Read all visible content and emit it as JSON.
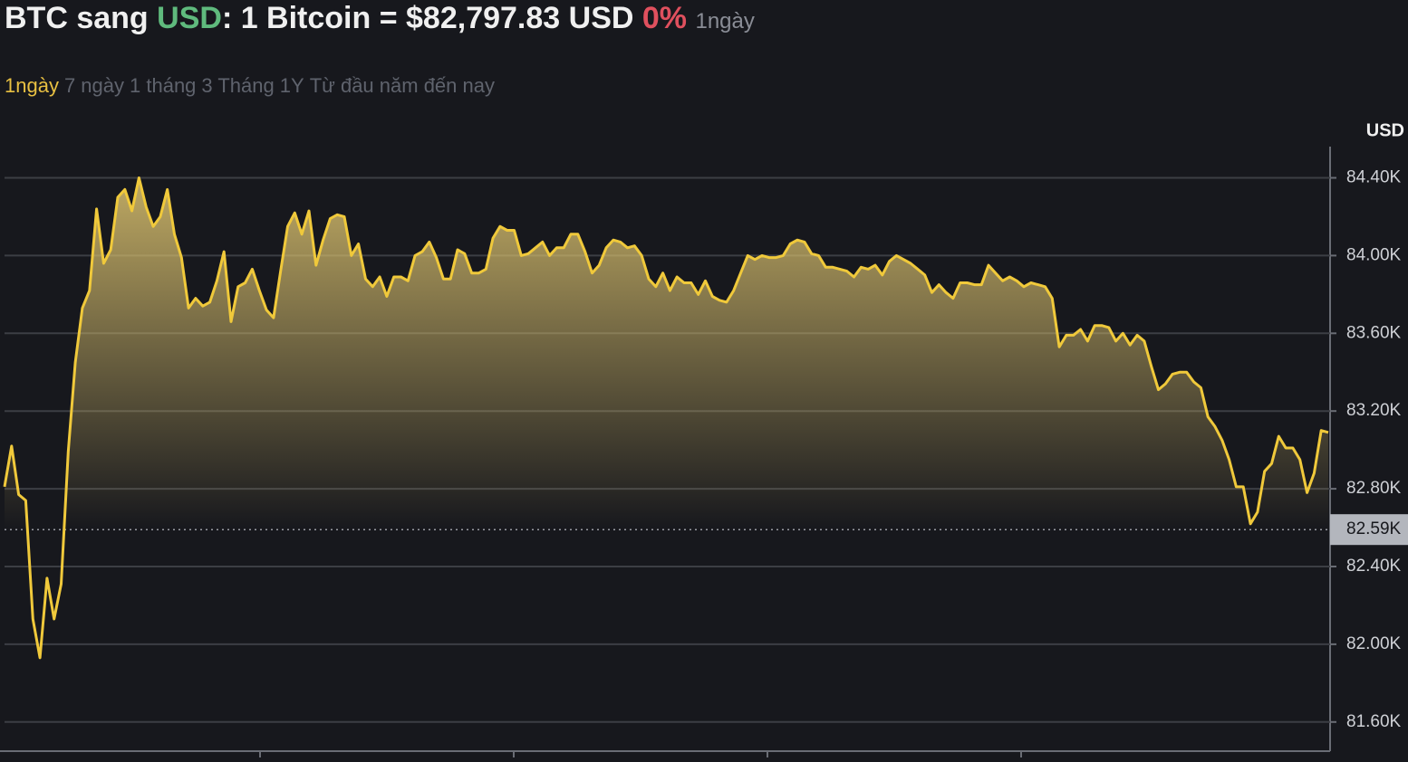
{
  "header": {
    "base": "BTC sang",
    "quote": "USD",
    "rate": ": 1 Bitcoin = $82,797.83 USD",
    "change": "0%",
    "period": "1ngày"
  },
  "tabs": {
    "items": [
      "1ngày",
      "7 ngày",
      "1 tháng",
      "3 Tháng",
      "1Y",
      "Từ đầu năm đến nay"
    ],
    "active": 0
  },
  "chart_data": {
    "type": "area",
    "y_unit": "USD",
    "color": "#f0c93b",
    "grid": true,
    "ylim": [
      81450,
      84570
    ],
    "yticks": [
      {
        "value": 81600,
        "label": "81.60K"
      },
      {
        "value": 82000,
        "label": "82.00K"
      },
      {
        "value": 82400,
        "label": "82.40K"
      },
      {
        "value": 82800,
        "label": "82.80K"
      },
      {
        "value": 83200,
        "label": "83.20K"
      },
      {
        "value": 83600,
        "label": "83.60K"
      },
      {
        "value": 84000,
        "label": "84.00K"
      },
      {
        "value": 84400,
        "label": "84.40K"
      }
    ],
    "reference_line": {
      "value": 82590,
      "label": "82.59K"
    },
    "values": [
      82810,
      83020,
      82770,
      82740,
      82130,
      81930,
      82340,
      82130,
      82310,
      82990,
      83450,
      83730,
      83820,
      84240,
      83960,
      84030,
      84300,
      84340,
      84230,
      84400,
      84250,
      84150,
      84200,
      84340,
      84110,
      83990,
      83730,
      83780,
      83740,
      83760,
      83870,
      84020,
      83660,
      83840,
      83860,
      83930,
      83820,
      83720,
      83680,
      83920,
      84150,
      84220,
      84110,
      84230,
      83950,
      84080,
      84190,
      84210,
      84200,
      84000,
      84060,
      83880,
      83840,
      83890,
      83790,
      83890,
      83890,
      83870,
      84000,
      84020,
      84070,
      83990,
      83880,
      83880,
      84030,
      84010,
      83910,
      83910,
      83930,
      84090,
      84150,
      84130,
      84130,
      84000,
      84010,
      84040,
      84070,
      84000,
      84040,
      84040,
      84110,
      84110,
      84020,
      83910,
      83950,
      84040,
      84080,
      84070,
      84040,
      84050,
      84000,
      83880,
      83840,
      83910,
      83820,
      83890,
      83860,
      83860,
      83800,
      83870,
      83790,
      83770,
      83760,
      83820,
      83910,
      84000,
      83980,
      84000,
      83990,
      83990,
      84000,
      84060,
      84080,
      84070,
      84010,
      84000,
      83940,
      83940,
      83930,
      83920,
      83890,
      83940,
      83930,
      83950,
      83900,
      83970,
      84000,
      83980,
      83960,
      83930,
      83900,
      83810,
      83850,
      83810,
      83780,
      83860,
      83860,
      83850,
      83850,
      83950,
      83910,
      83870,
      83890,
      83870,
      83840,
      83860,
      83850,
      83840,
      83780,
      83530,
      83590,
      83590,
      83620,
      83560,
      83640,
      83640,
      83630,
      83560,
      83600,
      83540,
      83590,
      83560,
      83430,
      83310,
      83340,
      83390,
      83400,
      83400,
      83350,
      83320,
      83170,
      83120,
      83050,
      82950,
      82810,
      82810,
      82620,
      82680,
      82890,
      82930,
      83070,
      83010,
      83010,
      82950,
      82780,
      82880,
      83100,
      83090
    ]
  }
}
